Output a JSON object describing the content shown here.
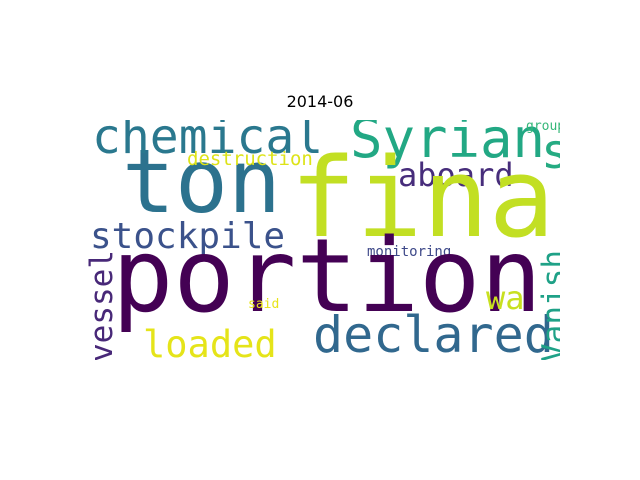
{
  "title": "2014-06",
  "words": {
    "portion": "portion",
    "final": "final",
    "ton": "ton",
    "declared": "declared",
    "syrian": "Syrian",
    "chemical": "chemical",
    "stockpile": "stockpile",
    "loaded": "loaded",
    "aboard": "aboard",
    "wa": "wa",
    "vanish": "Vanish",
    "vessel": "vessel",
    "s": "s",
    "destruction": "destruction",
    "monitoring": "monitoring",
    "group": "group",
    "said": "said"
  },
  "colors": {
    "portion": "#440154",
    "final": "#c2df23",
    "ton": "#2c728e",
    "declared": "#31688e",
    "syrian": "#22a884",
    "chemical": "#2a788e",
    "stockpile": "#3b528b",
    "loaded": "#e5e419",
    "aboard": "#472d7b",
    "wa": "#c8e020",
    "vanish": "#1fa187",
    "vessel": "#482878",
    "s": "#25ab82",
    "destruction": "#dde318",
    "monitoring": "#3e4989",
    "group": "#35b779",
    "said": "#e7e419"
  }
}
